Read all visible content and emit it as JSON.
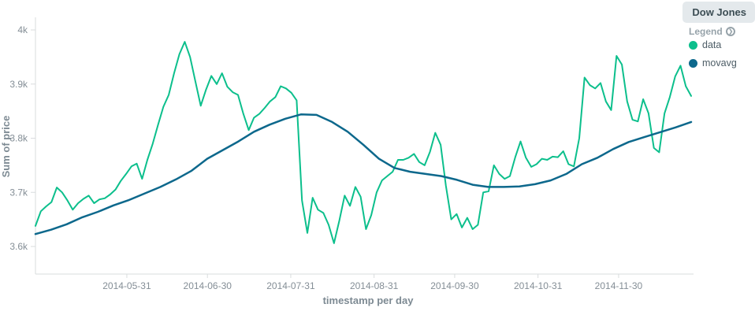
{
  "header": {
    "title": "Dow Jones"
  },
  "legend": {
    "label": "Legend",
    "toggle_icon": "chevron-circle-icon",
    "items": [
      {
        "label": "data",
        "color": "#0cbf8c"
      },
      {
        "label": "movavg",
        "color": "#0d688c"
      }
    ]
  },
  "chart_data": {
    "type": "line",
    "title": "Dow Jones",
    "xlabel": "timestamp per day",
    "ylabel": "Sum of price",
    "grid": false,
    "legend_position": "right",
    "x_start_date": "2014-04-27",
    "x_end_date": "2014-12-27",
    "x_total_days": 244,
    "x_ticks": [
      {
        "label": "2014-05-31",
        "day": 34
      },
      {
        "label": "2014-06-30",
        "day": 64
      },
      {
        "label": "2014-07-31",
        "day": 95
      },
      {
        "label": "2014-08-31",
        "day": 126
      },
      {
        "label": "2014-09-30",
        "day": 156
      },
      {
        "label": "2014-10-31",
        "day": 187
      },
      {
        "label": "2014-11-30",
        "day": 217
      }
    ],
    "y_ticks": [
      {
        "label": "4k",
        "value": 4000
      },
      {
        "label": "3.9k",
        "value": 3900
      },
      {
        "label": "3.8k",
        "value": 3800
      },
      {
        "label": "3.7k",
        "value": 3700
      },
      {
        "label": "3.6k",
        "value": 3600
      }
    ],
    "ylim": [
      3600,
      4000
    ],
    "series": [
      {
        "name": "data",
        "color": "#0cbf8c",
        "stroke_width": 2,
        "values": [
          3638,
          3665,
          3674,
          3682,
          3709,
          3700,
          3685,
          3668,
          3680,
          3688,
          3694,
          3680,
          3687,
          3689,
          3696,
          3705,
          3721,
          3734,
          3748,
          3753,
          3725,
          3760,
          3790,
          3825,
          3858,
          3880,
          3920,
          3955,
          3978,
          3950,
          3905,
          3860,
          3890,
          3915,
          3900,
          3920,
          3895,
          3885,
          3880,
          3845,
          3815,
          3838,
          3845,
          3856,
          3868,
          3876,
          3896,
          3892,
          3884,
          3870,
          3685,
          3625,
          3690,
          3668,
          3662,
          3640,
          3606,
          3648,
          3694,
          3675,
          3710,
          3692,
          3632,
          3658,
          3700,
          3722,
          3730,
          3738,
          3760,
          3760,
          3764,
          3771,
          3756,
          3750,
          3775,
          3810,
          3788,
          3712,
          3650,
          3660,
          3635,
          3653,
          3632,
          3640,
          3700,
          3702,
          3750,
          3734,
          3725,
          3730,
          3765,
          3794,
          3764,
          3747,
          3752,
          3762,
          3760,
          3766,
          3765,
          3776,
          3752,
          3748,
          3800,
          3912,
          3898,
          3892,
          3902,
          3868,
          3852,
          3952,
          3936,
          3868,
          3834,
          3831,
          3872,
          3846,
          3782,
          3774,
          3846,
          3876,
          3914,
          3934,
          3896,
          3878
        ]
      },
      {
        "name": "movavg",
        "color": "#0d688c",
        "stroke_width": 2.5,
        "values": [
          3623,
          3631,
          3641,
          3654,
          3664,
          3676,
          3686,
          3698,
          3710,
          3724,
          3740,
          3762,
          3778,
          3794,
          3812,
          3825,
          3836,
          3844,
          3843,
          3830,
          3812,
          3788,
          3762,
          3745,
          3738,
          3734,
          3730,
          3723,
          3714,
          3710,
          3710,
          3711,
          3715,
          3722,
          3734,
          3752,
          3764,
          3780,
          3793,
          3802,
          3811,
          3820,
          3830
        ]
      }
    ]
  }
}
